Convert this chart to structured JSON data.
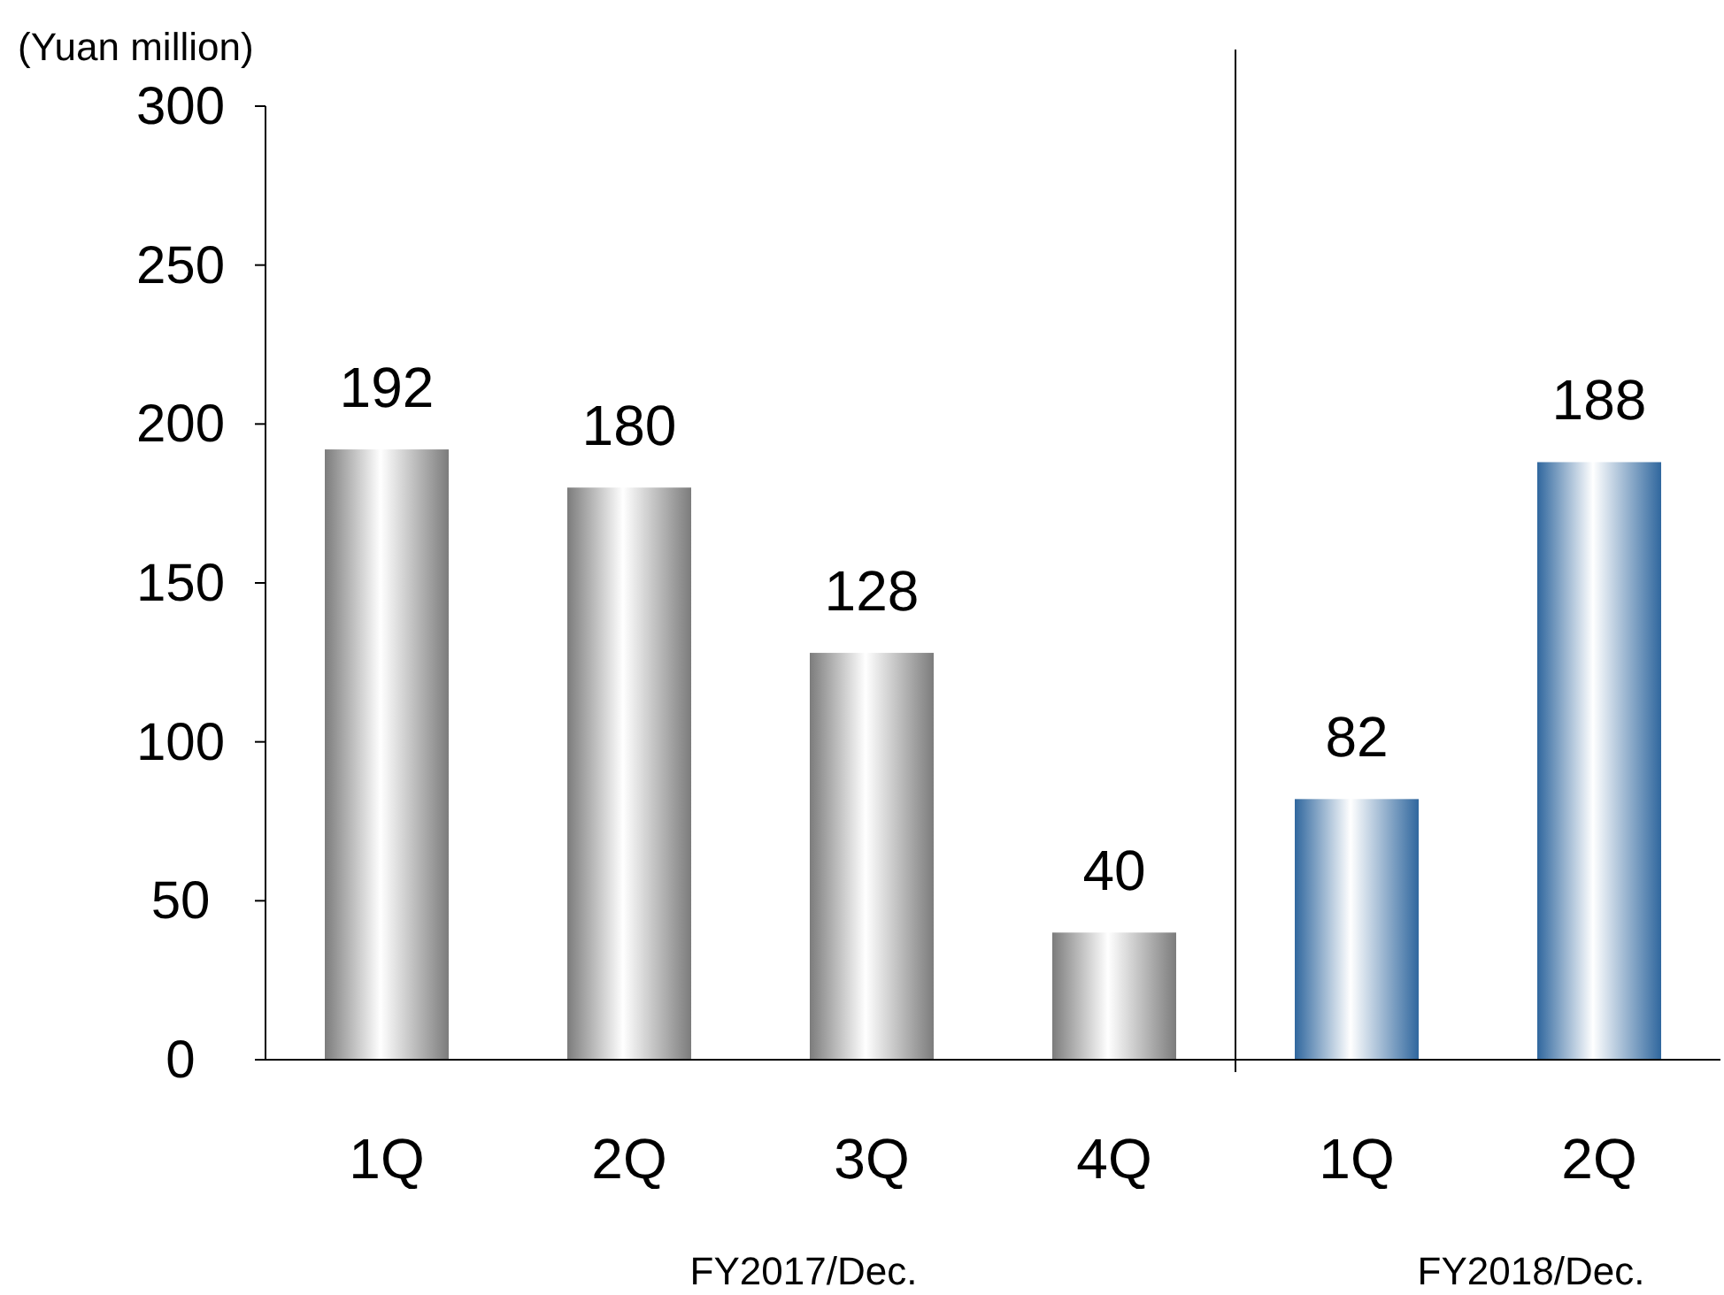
{
  "chart_data": {
    "type": "bar",
    "ylabel": "(Yuan million)",
    "categories": [
      "1Q",
      "2Q",
      "3Q",
      "4Q",
      "1Q",
      "2Q"
    ],
    "values": [
      192,
      180,
      128,
      40,
      82,
      188
    ],
    "colors": [
      "#9a9a9a",
      "#9a9a9a",
      "#9a9a9a",
      "#9a9a9a",
      "#3c7fc4",
      "#3c7fc4"
    ],
    "ylim": [
      0,
      300
    ],
    "yticks": [
      0,
      50,
      100,
      150,
      200,
      250,
      300
    ],
    "grid": false,
    "data_labels": true,
    "annotations": [
      "FY2017/Dec.",
      "FY2018/Dec."
    ]
  }
}
